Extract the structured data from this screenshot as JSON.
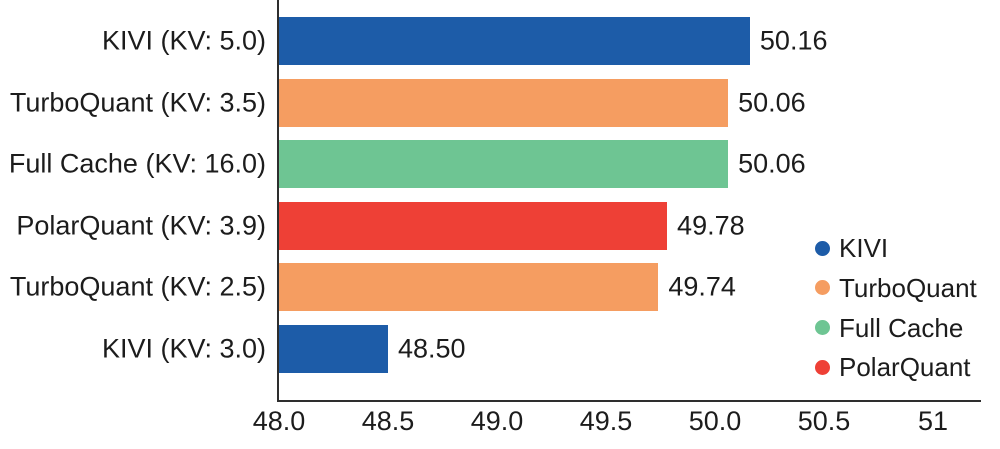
{
  "colors": {
    "background": "#FFFFFF",
    "text": "#1C1C1C",
    "axis_spine": "#2E2E2E"
  },
  "chart_data": {
    "type": "bar",
    "orientation": "horizontal",
    "title": "",
    "xlabel": "",
    "ylabel": "",
    "grid": false,
    "categories": [
      "KIVI (KV: 5.0)",
      "TurboQuant (KV: 3.5)",
      "Full Cache (KV: 16.0)",
      "PolarQuant (KV: 3.9)",
      "TurboQuant (KV: 2.5)",
      "KIVI (KV: 3.0)"
    ],
    "values": [
      50.16,
      50.06,
      50.06,
      49.78,
      49.74,
      48.5
    ],
    "value_labels": [
      "50.16",
      "50.06",
      "50.06",
      "49.78",
      "49.74",
      "48.50"
    ],
    "bar_series": [
      "KIVI",
      "TurboQuant",
      "Full Cache",
      "PolarQuant",
      "TurboQuant",
      "KIVI"
    ],
    "series_colors": {
      "KIVI": "#1D5CA8",
      "TurboQuant": "#F59D61",
      "Full Cache": "#6EC593",
      "PolarQuant": "#EE4036"
    },
    "xlim": [
      48.0,
      51.22
    ],
    "x_ticks": [
      {
        "value": 48.0,
        "label": "48.0"
      },
      {
        "value": 48.5,
        "label": "48.5"
      },
      {
        "value": 49.0,
        "label": "49.0"
      },
      {
        "value": 49.5,
        "label": "49.5"
      },
      {
        "value": 50.0,
        "label": "50.0"
      },
      {
        "value": 50.5,
        "label": "50.5"
      },
      {
        "value": 51.0,
        "label": "51"
      }
    ],
    "legend": {
      "position": "right-middle",
      "entries": [
        {
          "label": "KIVI",
          "color": "#1D5CA8"
        },
        {
          "label": "TurboQuant",
          "color": "#F59D61"
        },
        {
          "label": "Full Cache",
          "color": "#6EC593"
        },
        {
          "label": "PolarQuant",
          "color": "#EE4036"
        }
      ]
    }
  }
}
